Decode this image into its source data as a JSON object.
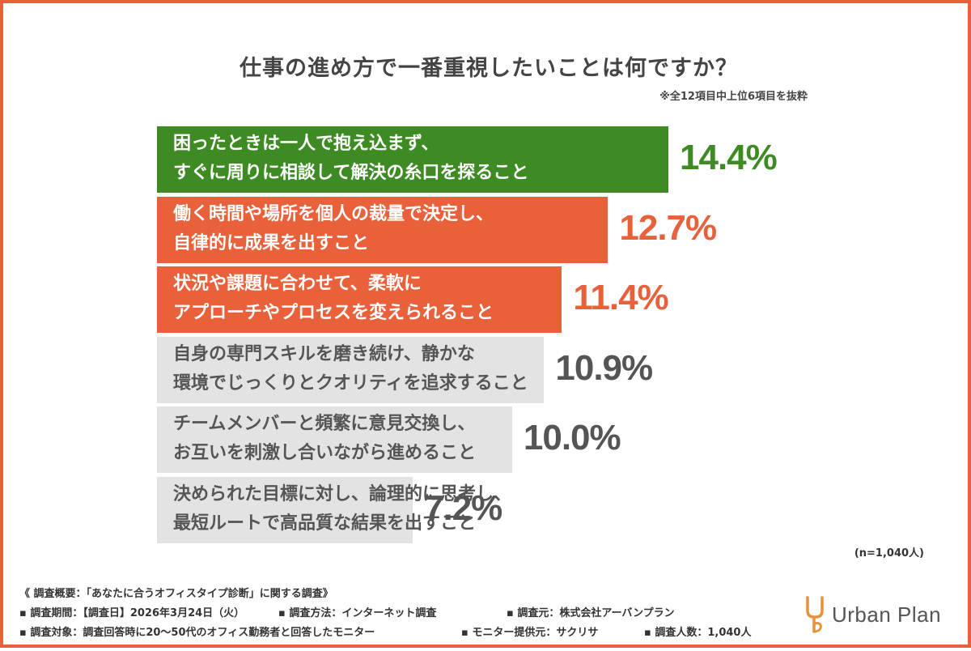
{
  "title": "仕事の進め方で一番重視したいことは何ですか？",
  "note": "※全12項目中上位6項目を抜粋",
  "sample_size": "(n=1,040人)",
  "colors": {
    "green": "#3e8b23",
    "orange": "#e8613a",
    "gray_bar": "#e3e3e3",
    "gray_text": "#555555",
    "border": "#e8613a"
  },
  "chart_data": {
    "type": "bar",
    "orientation": "horizontal",
    "title": "仕事の進め方で一番重視したいことは何ですか？",
    "unit": "%",
    "categories": [
      [
        "困ったときは一人で抱え込まず、",
        "すぐに周りに相談して解決の糸口を探ること"
      ],
      [
        "働く時間や場所を個人の裁量で決定し、",
        "自律的に成果を出すこと"
      ],
      [
        "状況や課題に合わせて、柔軟に",
        "アプローチやプロセスを変えられること"
      ],
      [
        "自身の専門スキルを磨き続け、静かな",
        "環境でじっくりとクオリティを追求すること"
      ],
      [
        "チームメンバーと頻繁に意見交換し、",
        "お互いを刺激し合いながら進めること"
      ],
      [
        "決められた目標に対し、論理的に思考し、",
        "最短ルートで高品質な結果を出すこと"
      ]
    ],
    "values": [
      14.4,
      12.7,
      11.4,
      10.9,
      10.0,
      7.2
    ],
    "value_labels": [
      "14.4%",
      "12.7%",
      "11.4%",
      "10.9%",
      "10.0%",
      "7.2%"
    ],
    "bar_colors": [
      "#3e8b23",
      "#e8613a",
      "#e8613a",
      "#e3e3e3",
      "#e3e3e3",
      "#e3e3e3"
    ],
    "label_colors": [
      "#ffffff",
      "#ffffff",
      "#ffffff",
      "#555555",
      "#555555",
      "#555555"
    ],
    "value_colors": [
      "#3e8b23",
      "#e8613a",
      "#e8613a",
      "#555555",
      "#555555",
      "#555555"
    ]
  },
  "footer": {
    "overview": "《 調査概要：「あなたに合うオフィスタイプ診断」に関する調査》",
    "period": "▪ 調査期間：【調査日】2026年3月24日（火）",
    "method": "▪ 調査方法：インターネット調査",
    "source": "▪ 調査元：株式会社アーバンプラン",
    "target": "▪ 調査対象：調査回答時に20〜50代のオフィス勤務者と回答したモニター",
    "provider": "▪ モニター提供元：サクリサ",
    "respondents": "▪ 調査人数：1,040人"
  },
  "logo": {
    "text": "Urban Plan",
    "mark": "urban-plan-logo-mark"
  }
}
